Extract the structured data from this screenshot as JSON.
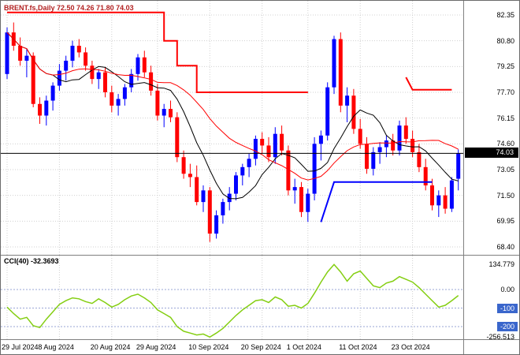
{
  "header": {
    "title": "BRENT.fs,Daily 72.50 74.26 71.80 74.03"
  },
  "indicator": {
    "label": "CCI(40) -32.3693"
  },
  "price_axis": {
    "ticks": [
      "82.35",
      "80.80",
      "79.25",
      "77.70",
      "76.15",
      "74.60",
      "73.05",
      "71.50",
      "69.95",
      "68.40"
    ],
    "current_price": "74.03"
  },
  "cci_axis": {
    "ticks": [
      {
        "label": "134.779",
        "value": 134.779,
        "badge": false
      },
      {
        "label": "0.00",
        "value": 0,
        "badge": false
      },
      {
        "label": "-100",
        "value": -100,
        "badge": true
      },
      {
        "label": "-200",
        "value": -200,
        "badge": true
      },
      {
        "label": "-256.513",
        "value": -256.513,
        "badge": false
      }
    ]
  },
  "time_axis": {
    "labels": [
      {
        "text": "29 Jul 2024",
        "bar": 0
      },
      {
        "text": "8 Aug 2024",
        "bar": 8
      },
      {
        "text": "20 Aug 2024",
        "bar": 16
      },
      {
        "text": "29 Aug 2024",
        "bar": 23
      },
      {
        "text": "10 Sep 2024",
        "bar": 31
      },
      {
        "text": "20 Sep 2024",
        "bar": 39
      },
      {
        "text": "1 Oct 2024",
        "bar": 46
      },
      {
        "text": "11 Oct 2024",
        "bar": 54
      },
      {
        "text": "23 Oct 2024",
        "bar": 62
      }
    ]
  },
  "colors": {
    "up": "#0000ff",
    "down": "#ff0000",
    "grid": "#d0d0d0",
    "cci_line": "#84ce12",
    "level_line": "#9aa6d6",
    "price_line": "#000000",
    "badge_price_bg": "#000000",
    "badge_level_bg": "#3a66cc"
  },
  "chart_data": {
    "type": "candlestick",
    "symbol": "BRENT.fs",
    "timeframe": "Daily",
    "ohlc_display": {
      "open": "72.50",
      "high": "74.26",
      "low": "71.80",
      "close": "74.03"
    },
    "price_range": [
      68.4,
      82.35
    ],
    "price_ticks": [
      82.35,
      80.8,
      79.25,
      77.7,
      76.15,
      74.6,
      73.05,
      71.5,
      69.95,
      68.4
    ],
    "current_price": 74.03,
    "candles": [
      [
        78.8,
        81.6,
        78.5,
        81.3
      ],
      [
        81.3,
        81.9,
        80.2,
        80.5
      ],
      [
        80.5,
        81.0,
        79.3,
        79.6
      ],
      [
        79.6,
        80.3,
        78.6,
        79.9
      ],
      [
        79.9,
        80.1,
        76.8,
        77.0
      ],
      [
        77.0,
        77.4,
        75.8,
        76.3
      ],
      [
        76.3,
        77.5,
        75.7,
        77.2
      ],
      [
        77.2,
        78.3,
        76.6,
        78.1
      ],
      [
        78.1,
        79.4,
        77.8,
        79.0
      ],
      [
        79.0,
        79.9,
        78.4,
        79.6
      ],
      [
        79.6,
        80.8,
        79.2,
        80.5
      ],
      [
        80.5,
        80.9,
        79.8,
        80.1
      ],
      [
        80.1,
        80.4,
        79.0,
        79.3
      ],
      [
        79.3,
        79.6,
        78.2,
        78.5
      ],
      [
        78.5,
        79.1,
        77.9,
        78.9
      ],
      [
        78.9,
        79.2,
        77.4,
        77.7
      ],
      [
        77.7,
        78.1,
        76.5,
        76.9
      ],
      [
        76.9,
        77.6,
        76.3,
        77.3
      ],
      [
        77.3,
        78.2,
        76.9,
        78.0
      ],
      [
        78.0,
        79.1,
        77.7,
        78.8
      ],
      [
        78.8,
        80.0,
        78.4,
        79.8
      ],
      [
        79.8,
        80.2,
        78.6,
        78.9
      ],
      [
        78.9,
        79.3,
        77.5,
        77.8
      ],
      [
        77.8,
        78.2,
        76.0,
        76.3
      ],
      [
        76.3,
        77.0,
        75.6,
        76.7
      ],
      [
        76.7,
        77.2,
        75.9,
        76.2
      ],
      [
        76.2,
        76.5,
        73.5,
        73.8
      ],
      [
        73.8,
        74.2,
        72.5,
        72.8
      ],
      [
        72.8,
        73.4,
        72.0,
        72.6
      ],
      [
        72.6,
        73.3,
        70.9,
        71.1
      ],
      [
        71.1,
        72.1,
        70.5,
        71.8
      ],
      [
        71.8,
        72.0,
        68.7,
        69.2
      ],
      [
        69.2,
        70.6,
        68.9,
        70.3
      ],
      [
        70.3,
        71.3,
        69.8,
        71.1
      ],
      [
        71.1,
        72.0,
        70.6,
        71.6
      ],
      [
        71.6,
        72.9,
        71.2,
        72.7
      ],
      [
        72.7,
        73.4,
        72.1,
        73.2
      ],
      [
        73.2,
        74.0,
        72.6,
        73.7
      ],
      [
        73.7,
        75.1,
        73.3,
        74.9
      ],
      [
        74.9,
        75.3,
        74.0,
        74.5
      ],
      [
        74.5,
        75.0,
        73.5,
        73.8
      ],
      [
        73.8,
        75.6,
        73.4,
        75.2
      ],
      [
        75.2,
        75.7,
        73.9,
        74.2
      ],
      [
        74.2,
        74.5,
        71.5,
        71.8
      ],
      [
        71.8,
        72.5,
        71.0,
        72.0
      ],
      [
        72.0,
        72.3,
        70.2,
        70.5
      ],
      [
        70.5,
        71.9,
        69.9,
        71.6
      ],
      [
        71.6,
        75.0,
        71.2,
        74.6
      ],
      [
        74.6,
        75.4,
        73.6,
        75.1
      ],
      [
        75.1,
        78.3,
        74.8,
        78.0
      ],
      [
        78.0,
        81.1,
        77.6,
        80.9
      ],
      [
        80.9,
        81.3,
        76.5,
        76.9
      ],
      [
        76.9,
        78.0,
        75.9,
        77.5
      ],
      [
        77.5,
        77.9,
        75.2,
        75.5
      ],
      [
        75.5,
        76.1,
        74.3,
        74.6
      ],
      [
        74.6,
        75.0,
        72.8,
        73.1
      ],
      [
        73.1,
        74.4,
        72.7,
        74.1
      ],
      [
        74.1,
        74.7,
        73.4,
        74.4
      ],
      [
        74.4,
        75.1,
        73.8,
        74.8
      ],
      [
        74.8,
        75.2,
        73.9,
        74.2
      ],
      [
        74.2,
        76.0,
        73.9,
        75.7
      ],
      [
        75.7,
        76.2,
        74.6,
        74.9
      ],
      [
        74.9,
        75.4,
        73.8,
        74.1
      ],
      [
        74.1,
        74.6,
        72.9,
        73.2
      ],
      [
        73.2,
        73.7,
        71.8,
        72.1
      ],
      [
        72.1,
        72.5,
        70.6,
        70.9
      ],
      [
        70.9,
        71.8,
        70.2,
        71.5
      ],
      [
        71.5,
        72.0,
        70.4,
        70.7
      ],
      [
        70.7,
        72.6,
        70.5,
        72.4
      ],
      [
        72.5,
        74.26,
        71.8,
        74.03
      ]
    ],
    "moving_averages": [
      {
        "period": 8,
        "color": "#000000"
      },
      {
        "period": 20,
        "color": "#ff0000"
      }
    ],
    "overlay_lines": [
      {
        "color": "#ff0000",
        "width": 2,
        "points": [
          [
            0,
            82.5
          ],
          [
            24,
            82.5
          ],
          [
            24,
            80.8
          ],
          [
            26,
            80.8
          ],
          [
            26,
            79.3
          ],
          [
            29,
            79.3
          ],
          [
            29,
            77.7
          ],
          [
            46,
            77.7
          ]
        ]
      },
      {
        "color": "#ff0000",
        "width": 2,
        "points": [
          [
            61,
            78.6
          ],
          [
            62,
            77.85
          ],
          [
            68,
            77.85
          ]
        ]
      },
      {
        "color": "#0000ff",
        "width": 2,
        "points": [
          [
            48,
            69.9
          ],
          [
            50,
            72.3
          ],
          [
            65,
            72.3
          ]
        ]
      }
    ],
    "indicator_panel": {
      "type": "line",
      "name": "CCI",
      "period": 40,
      "current": -32.3693,
      "range": [
        -256.513,
        134.779
      ],
      "levels": [
        0,
        -100,
        -200
      ],
      "values": [
        -95,
        -130,
        -160,
        -150,
        -195,
        -205,
        -160,
        -120,
        -80,
        -60,
        -45,
        -50,
        -65,
        -75,
        -50,
        -70,
        -95,
        -80,
        -55,
        -35,
        -25,
        -45,
        -70,
        -110,
        -130,
        -150,
        -200,
        -225,
        -235,
        -245,
        -240,
        -256.513,
        -235,
        -210,
        -175,
        -140,
        -110,
        -85,
        -60,
        -55,
        -70,
        -40,
        -55,
        -90,
        -85,
        -100,
        -75,
        -20,
        40,
        95,
        134.779,
        95,
        45,
        85,
        100,
        60,
        20,
        10,
        35,
        45,
        70,
        55,
        40,
        10,
        -25,
        -60,
        -95,
        -85,
        -60,
        -32.3693
      ]
    }
  }
}
